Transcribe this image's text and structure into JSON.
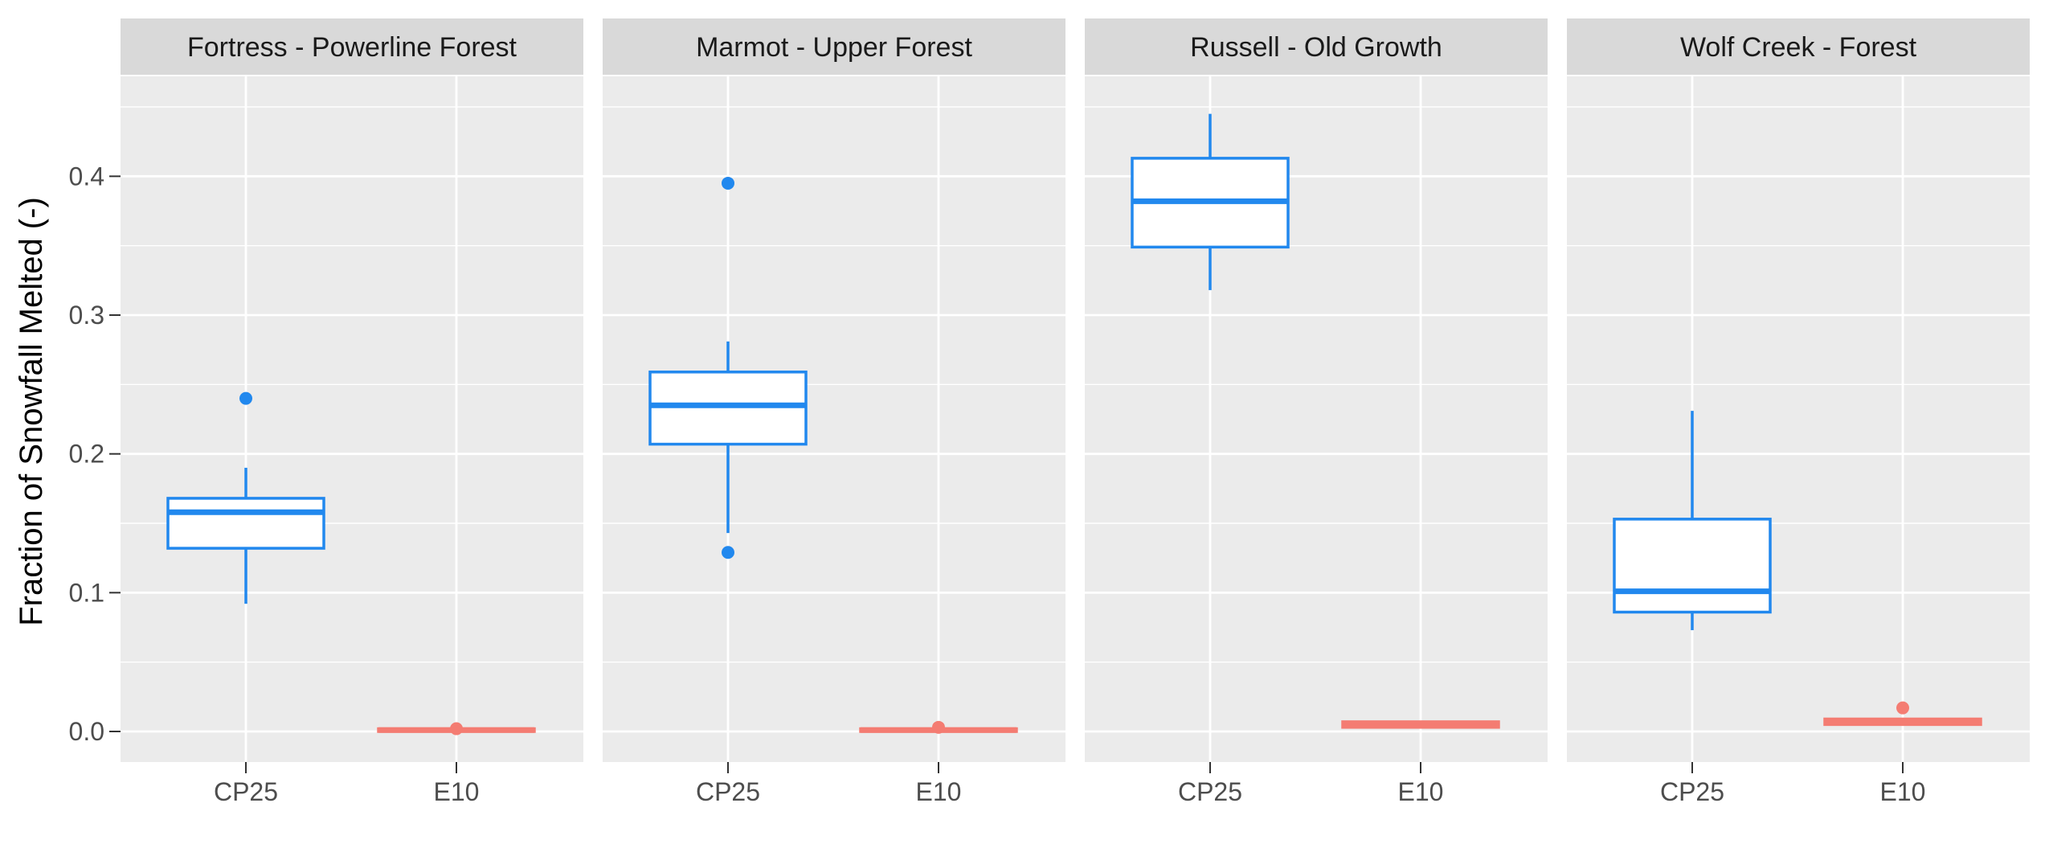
{
  "chart_data": {
    "type": "boxplot",
    "ylabel": "Fraction of Snowfall Melted (-)",
    "xlabel": "",
    "ylim": [
      -0.022,
      0.472
    ],
    "y_ticks": [
      0.0,
      0.1,
      0.2,
      0.3,
      0.4
    ],
    "y_tick_labels": [
      "0.0",
      "0.1",
      "0.2",
      "0.3",
      "0.4"
    ],
    "categories": [
      "CP25",
      "E10"
    ],
    "colors": {
      "CP25": "#2188EE",
      "E10": "#F47C72"
    },
    "panel_background": "#EBEBEB",
    "strip_background": "#D9D9D9",
    "grid_color": "#FFFFFF",
    "legend": "none",
    "panels": [
      {
        "title": "Fortress - Powerline Forest",
        "boxes": [
          {
            "category": "CP25",
            "min": 0.092,
            "q1": 0.132,
            "median": 0.158,
            "q3": 0.168,
            "max": 0.19,
            "outliers": [
              0.24
            ]
          },
          {
            "category": "E10",
            "min": 0.0,
            "q1": 0.0,
            "median": 0.001,
            "q3": 0.002,
            "max": 0.002,
            "outliers": [
              0.002
            ]
          }
        ]
      },
      {
        "title": "Marmot - Upper Forest",
        "boxes": [
          {
            "category": "CP25",
            "min": 0.143,
            "q1": 0.207,
            "median": 0.235,
            "q3": 0.259,
            "max": 0.281,
            "outliers": [
              0.395,
              0.129
            ]
          },
          {
            "category": "E10",
            "min": 0.0,
            "q1": 0.0,
            "median": 0.001,
            "q3": 0.002,
            "max": 0.002,
            "outliers": [
              0.003
            ]
          }
        ]
      },
      {
        "title": "Russell - Old Growth",
        "boxes": [
          {
            "category": "CP25",
            "min": 0.318,
            "q1": 0.349,
            "median": 0.382,
            "q3": 0.413,
            "max": 0.445,
            "outliers": []
          },
          {
            "category": "E10",
            "min": 0.003,
            "q1": 0.003,
            "median": 0.005,
            "q3": 0.007,
            "max": 0.007,
            "outliers": []
          }
        ]
      },
      {
        "title": "Wolf Creek - Forest",
        "boxes": [
          {
            "category": "CP25",
            "min": 0.073,
            "q1": 0.086,
            "median": 0.101,
            "q3": 0.153,
            "max": 0.231,
            "outliers": []
          },
          {
            "category": "E10",
            "min": 0.005,
            "q1": 0.005,
            "median": 0.007,
            "q3": 0.009,
            "max": 0.009,
            "outliers": [
              0.017
            ]
          }
        ]
      }
    ]
  }
}
